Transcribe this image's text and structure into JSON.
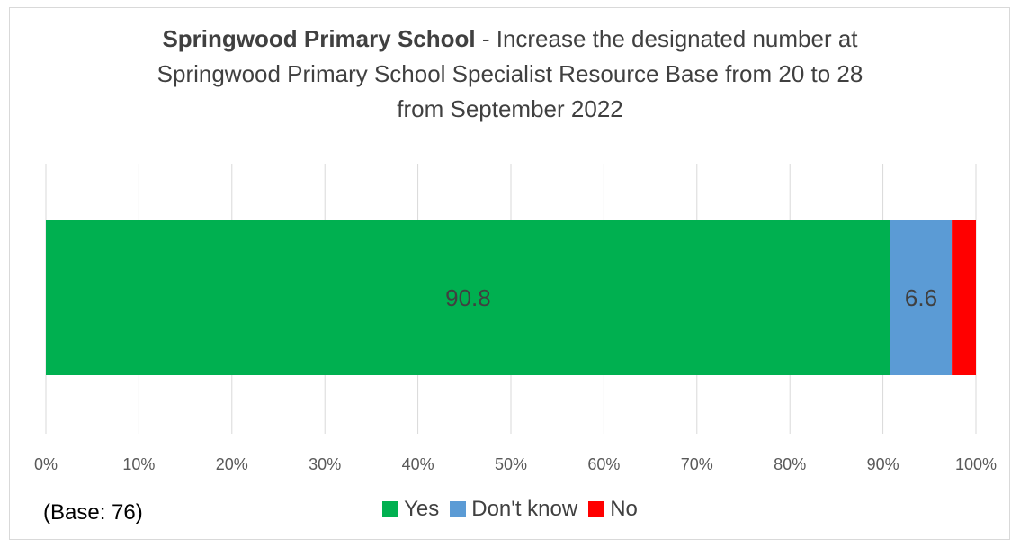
{
  "chart_data": {
    "type": "bar",
    "orientation": "horizontal",
    "stacked": "percent",
    "title_bold": "Springwood Primary School",
    "title_rest_line1": " - Increase the designated number at",
    "title_line2": "Springwood Primary School Specialist Resource Base from 20 to 28",
    "title_line3": "from September 2022",
    "xlim": [
      0,
      100
    ],
    "x_ticks": [
      0,
      10,
      20,
      30,
      40,
      50,
      60,
      70,
      80,
      90,
      100
    ],
    "x_tick_labels": [
      "0%",
      "10%",
      "20%",
      "30%",
      "40%",
      "50%",
      "60%",
      "70%",
      "80%",
      "90%",
      "100%"
    ],
    "grid": true,
    "legend_position": "bottom",
    "series": [
      {
        "name": "Yes",
        "values": [
          90.8
        ],
        "color": "#00b050",
        "label": "90.8"
      },
      {
        "name": "Don't know",
        "values": [
          6.6
        ],
        "color": "#5b9bd5",
        "label": "6.6"
      },
      {
        "name": "No",
        "values": [
          2.6
        ],
        "color": "#ff0000",
        "label": ""
      }
    ]
  },
  "base_note": "(Base: 76)"
}
